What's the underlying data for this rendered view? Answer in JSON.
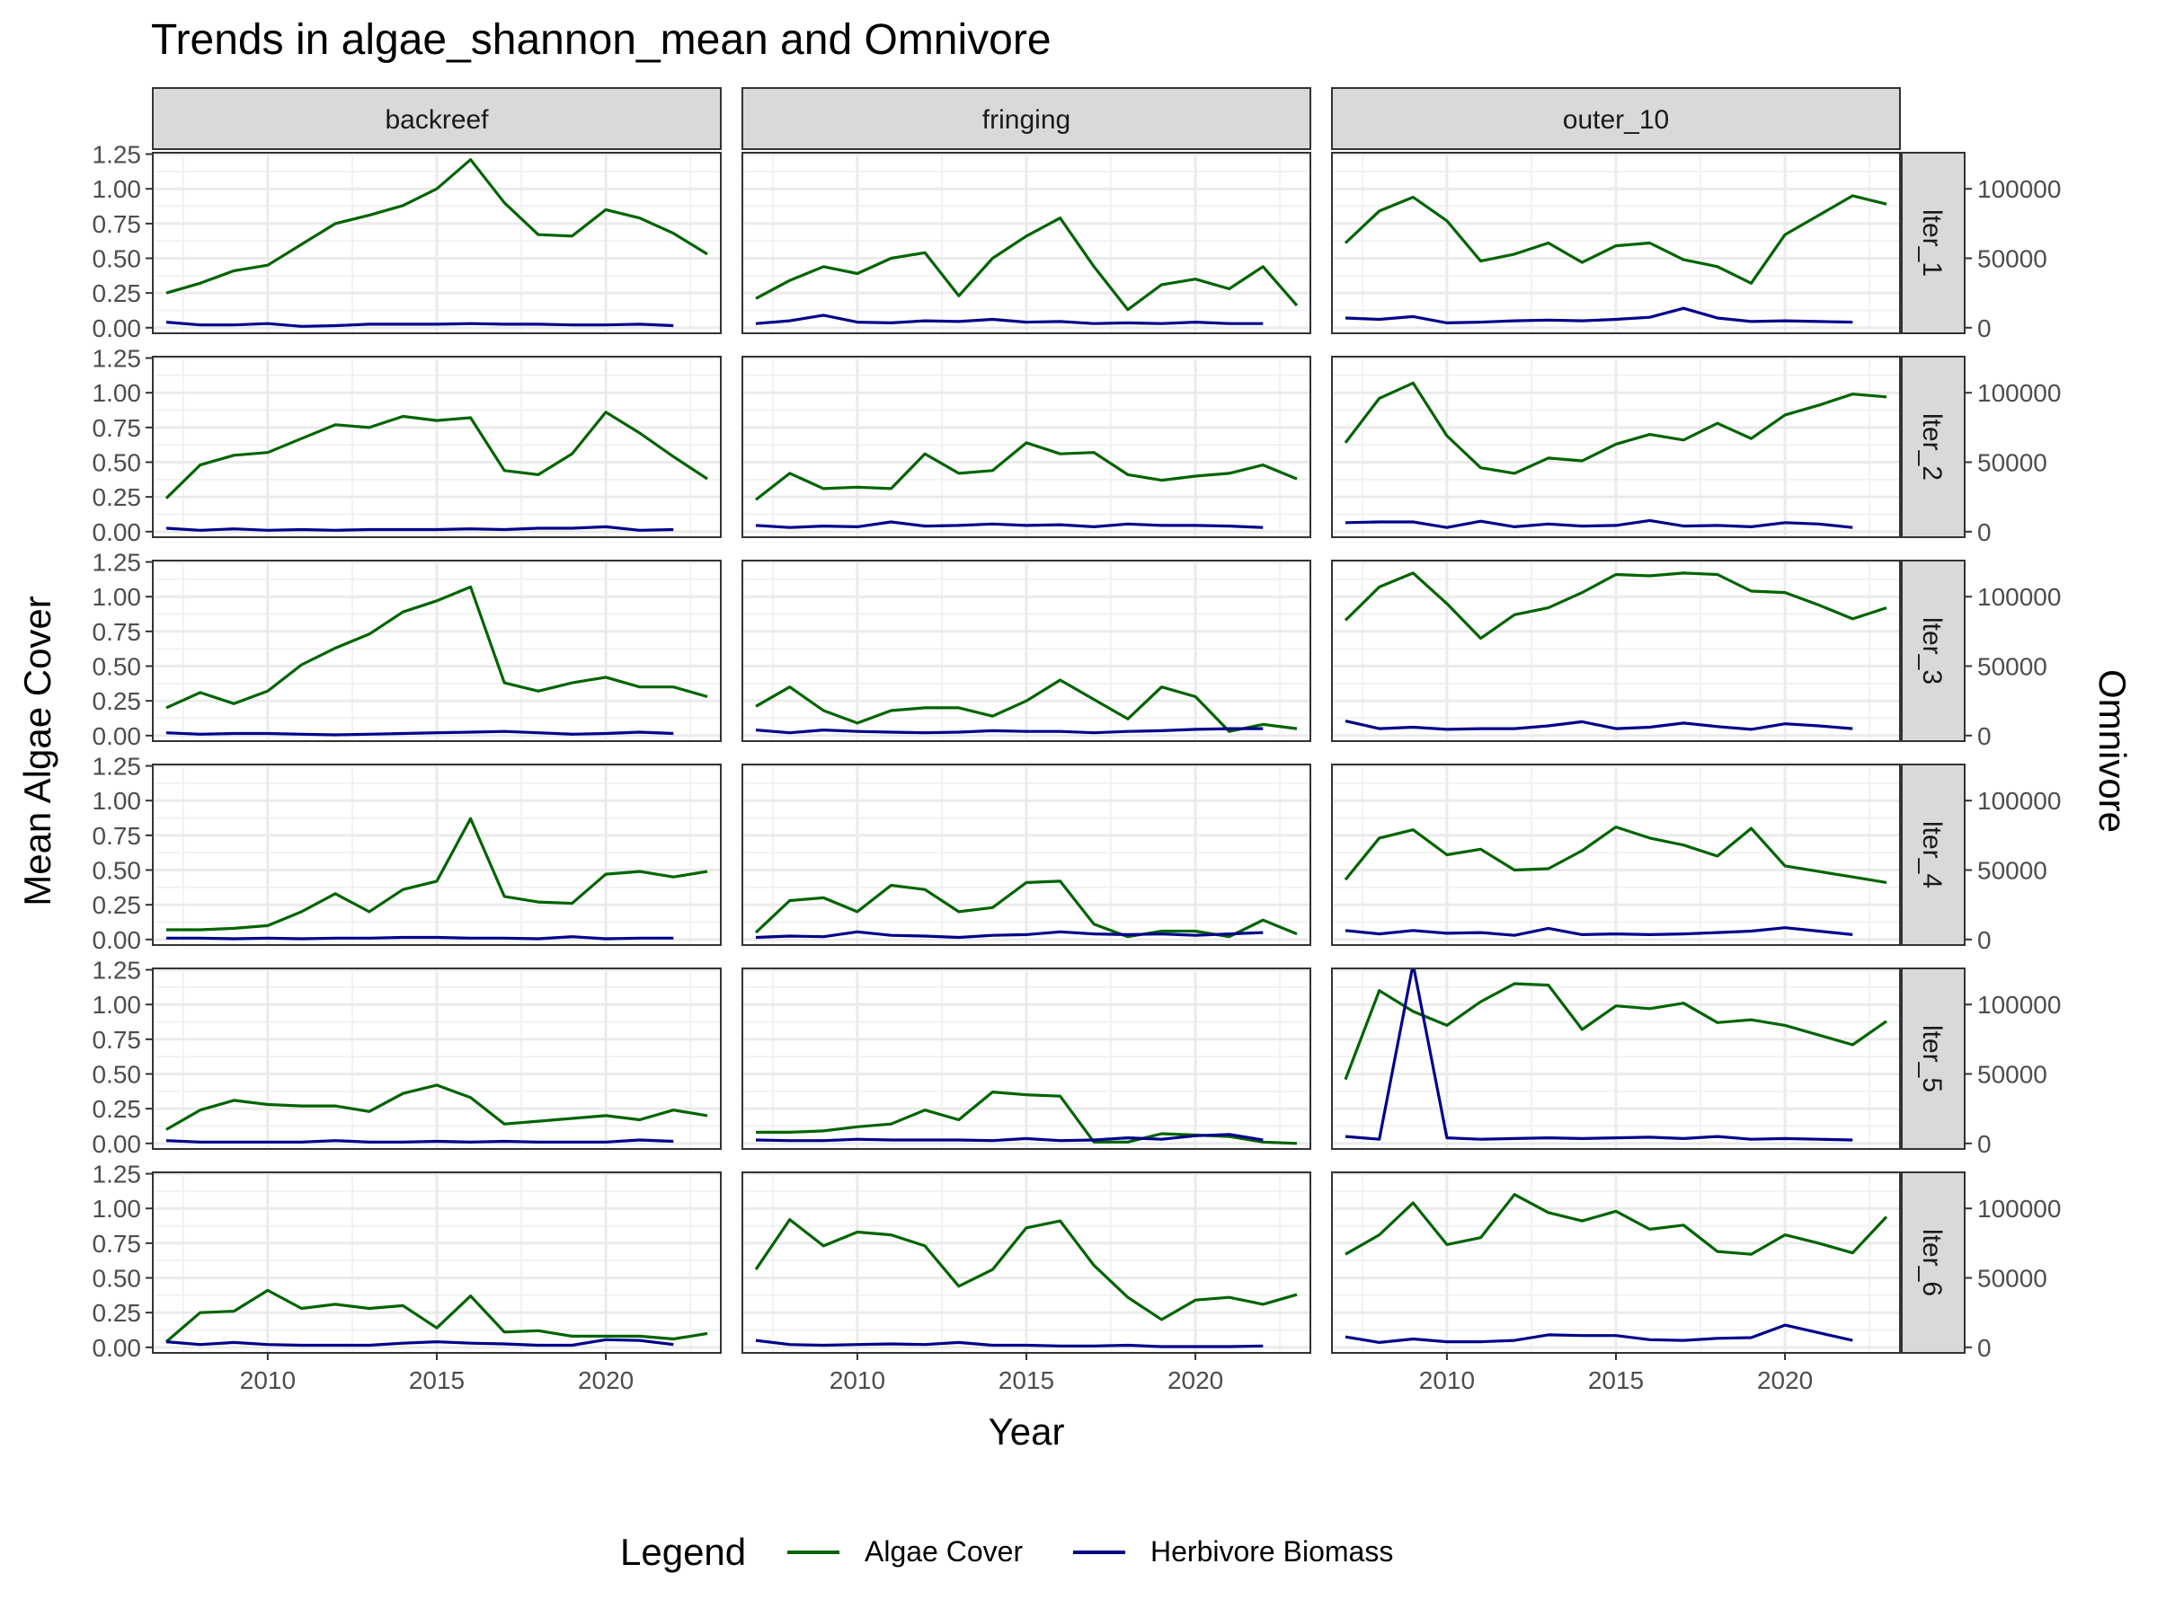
{
  "chart_data": {
    "type": "line",
    "title": "Trends in algae_shannon_mean and Omnivore",
    "xlabel": "Year",
    "ylabel": "Mean Algae Cover",
    "y2label": "Omnivore",
    "legend": {
      "title": "Legend",
      "position": "bottom",
      "entries": [
        {
          "name": "Algae Cover",
          "color": "#006400"
        },
        {
          "name": "Herbivore Biomass",
          "color": "#00008B"
        }
      ]
    },
    "grid": true,
    "xlim": [
      2006.6,
      2023.4
    ],
    "xticks": [
      2010,
      2015,
      2020
    ],
    "ylim": [
      -0.04,
      1.26
    ],
    "yticks": [
      0.0,
      0.25,
      0.5,
      0.75,
      1.0,
      1.25
    ],
    "ytick_labels": [
      "0.00",
      "0.25",
      "0.50",
      "0.75",
      "1.00",
      "1.25"
    ],
    "y2ticks": [
      0,
      50000,
      100000
    ],
    "y2tick_labels": [
      "0",
      "50000",
      "100000"
    ],
    "y2_per_y1": 100000,
    "columns": [
      "backreef",
      "fringing",
      "outer_10"
    ],
    "rows": [
      "lter_1",
      "lter_2",
      "lter_3",
      "lter_4",
      "lter_5",
      "lter_6"
    ],
    "algae_years": [
      2007,
      2008,
      2009,
      2010,
      2011,
      2012,
      2013,
      2014,
      2015,
      2016,
      2017,
      2018,
      2019,
      2020,
      2021,
      2022,
      2023
    ],
    "herbivore_years": [
      2007,
      2008,
      2009,
      2010,
      2011,
      2012,
      2013,
      2014,
      2015,
      2016,
      2017,
      2018,
      2019,
      2020,
      2021,
      2022
    ],
    "panels": [
      {
        "column": "backreef",
        "row": "lter_1",
        "algae": [
          0.25,
          0.32,
          0.41,
          0.45,
          0.6,
          0.75,
          0.81,
          0.88,
          1.0,
          1.21,
          0.9,
          0.67,
          0.66,
          0.85,
          0.79,
          0.68,
          0.53
        ],
        "herbivore": [
          4000,
          2000,
          2000,
          3000,
          1000,
          1500,
          2500,
          2500,
          2500,
          3000,
          2500,
          2500,
          2000,
          2000,
          2500,
          1500
        ]
      },
      {
        "column": "fringing",
        "row": "lter_1",
        "algae": [
          0.21,
          0.34,
          0.44,
          0.39,
          0.5,
          0.54,
          0.23,
          0.5,
          0.66,
          0.79,
          0.44,
          0.13,
          0.31,
          0.35,
          0.28,
          0.44,
          0.16
        ],
        "herbivore": [
          3000,
          5000,
          9000,
          4000,
          3500,
          5000,
          4500,
          6000,
          4000,
          4500,
          3000,
          3500,
          3000,
          4000,
          3000,
          3000
        ]
      },
      {
        "column": "outer_10",
        "row": "lter_1",
        "algae": [
          0.61,
          0.84,
          0.94,
          0.77,
          0.48,
          0.53,
          0.61,
          0.47,
          0.59,
          0.61,
          0.49,
          0.44,
          0.32,
          0.67,
          0.81,
          0.95,
          0.89
        ],
        "herbivore": [
          7000,
          6000,
          8000,
          3500,
          4000,
          5000,
          5500,
          5000,
          6000,
          7500,
          14000,
          7000,
          4500,
          5000,
          4500,
          4000
        ]
      },
      {
        "column": "backreef",
        "row": "lter_2",
        "algae": [
          0.24,
          0.48,
          0.55,
          0.57,
          0.67,
          0.77,
          0.75,
          0.83,
          0.8,
          0.82,
          0.44,
          0.41,
          0.56,
          0.86,
          0.71,
          0.54,
          0.38
        ],
        "herbivore": [
          2500,
          1000,
          2000,
          1000,
          1500,
          1000,
          1500,
          1500,
          1500,
          2000,
          1500,
          2500,
          2500,
          3500,
          1000,
          1500
        ]
      },
      {
        "column": "fringing",
        "row": "lter_2",
        "algae": [
          0.23,
          0.42,
          0.31,
          0.32,
          0.31,
          0.56,
          0.42,
          0.44,
          0.64,
          0.56,
          0.57,
          0.41,
          0.37,
          0.4,
          0.42,
          0.48,
          0.38
        ],
        "herbivore": [
          4500,
          3000,
          4000,
          3500,
          7000,
          4000,
          4500,
          5500,
          4500,
          5000,
          3500,
          5500,
          4500,
          4500,
          4000,
          3000
        ]
      },
      {
        "column": "outer_10",
        "row": "lter_2",
        "algae": [
          0.64,
          0.96,
          1.07,
          0.69,
          0.46,
          0.42,
          0.53,
          0.51,
          0.63,
          0.7,
          0.66,
          0.78,
          0.67,
          0.84,
          0.91,
          0.99,
          0.97
        ],
        "herbivore": [
          6500,
          7000,
          7000,
          3000,
          7500,
          3500,
          5500,
          4000,
          4500,
          8000,
          4000,
          4500,
          3500,
          6500,
          5500,
          3000
        ]
      },
      {
        "column": "backreef",
        "row": "lter_3",
        "algae": [
          0.2,
          0.31,
          0.23,
          0.32,
          0.51,
          0.63,
          0.73,
          0.89,
          0.97,
          1.07,
          0.38,
          0.32,
          0.38,
          0.42,
          0.35,
          0.35,
          0.28
        ],
        "herbivore": [
          2000,
          1000,
          1500,
          1500,
          1000,
          500,
          1000,
          1500,
          2000,
          2500,
          3000,
          2000,
          1000,
          1500,
          2500,
          1500
        ]
      },
      {
        "column": "fringing",
        "row": "lter_3",
        "algae": [
          0.21,
          0.35,
          0.18,
          0.09,
          0.18,
          0.2,
          0.2,
          0.14,
          0.25,
          0.4,
          0.26,
          0.12,
          0.35,
          0.28,
          0.03,
          0.08,
          0.05
        ],
        "herbivore": [
          4000,
          2000,
          4000,
          3000,
          2500,
          2000,
          2500,
          3500,
          3000,
          3000,
          2000,
          3000,
          3500,
          4500,
          5000,
          5000
        ]
      },
      {
        "column": "outer_10",
        "row": "lter_3",
        "algae": [
          0.83,
          1.07,
          1.17,
          0.95,
          0.7,
          0.87,
          0.92,
          1.03,
          1.16,
          1.15,
          1.17,
          1.16,
          1.04,
          1.03,
          0.94,
          0.84,
          0.92
        ],
        "herbivore": [
          10500,
          5000,
          6000,
          4500,
          5000,
          5000,
          7000,
          10000,
          5000,
          6000,
          9000,
          6500,
          4500,
          8500,
          7000,
          5000
        ]
      },
      {
        "column": "backreef",
        "row": "lter_4",
        "algae": [
          0.07,
          0.07,
          0.08,
          0.1,
          0.2,
          0.33,
          0.2,
          0.36,
          0.42,
          0.87,
          0.31,
          0.27,
          0.26,
          0.47,
          0.49,
          0.45,
          0.49
        ],
        "herbivore": [
          1000,
          1000,
          500,
          1000,
          500,
          1000,
          1000,
          1500,
          1500,
          1000,
          1000,
          500,
          2000,
          500,
          1000,
          1000
        ]
      },
      {
        "column": "fringing",
        "row": "lter_4",
        "algae": [
          0.05,
          0.28,
          0.3,
          0.2,
          0.39,
          0.36,
          0.2,
          0.23,
          0.41,
          0.42,
          0.11,
          0.02,
          0.06,
          0.06,
          0.02,
          0.14,
          0.04
        ],
        "herbivore": [
          1500,
          2500,
          2000,
          5500,
          3000,
          2500,
          1500,
          3000,
          3500,
          5500,
          4000,
          3500,
          4000,
          3000,
          4000,
          5000
        ]
      },
      {
        "column": "outer_10",
        "row": "lter_4",
        "algae": [
          0.43,
          0.73,
          0.79,
          0.61,
          0.65,
          0.5,
          0.51,
          0.64,
          0.81,
          0.73,
          0.68,
          0.6,
          0.8,
          0.53,
          0.49,
          0.45,
          0.41
        ],
        "herbivore": [
          6500,
          4000,
          6500,
          4500,
          5000,
          3000,
          8000,
          3500,
          4000,
          3500,
          4000,
          5000,
          6000,
          8500,
          6000,
          3500
        ]
      },
      {
        "column": "backreef",
        "row": "lter_5",
        "algae": [
          0.1,
          0.24,
          0.31,
          0.28,
          0.27,
          0.27,
          0.23,
          0.36,
          0.42,
          0.33,
          0.14,
          0.16,
          0.18,
          0.2,
          0.17,
          0.24,
          0.2
        ],
        "herbivore": [
          2000,
          1000,
          1000,
          1000,
          1000,
          2000,
          1000,
          1000,
          1500,
          1000,
          1500,
          1000,
          1000,
          1000,
          2500,
          1500
        ]
      },
      {
        "column": "fringing",
        "row": "lter_5",
        "algae": [
          0.08,
          0.08,
          0.09,
          0.12,
          0.14,
          0.24,
          0.17,
          0.37,
          0.35,
          0.34,
          0.01,
          0.01,
          0.07,
          0.06,
          0.05,
          0.01,
          0.0
        ],
        "herbivore": [
          2500,
          2000,
          2000,
          3000,
          2500,
          2500,
          2500,
          2000,
          3500,
          2000,
          2500,
          4000,
          3000,
          5500,
          6500,
          2500
        ]
      },
      {
        "column": "outer_10",
        "row": "lter_5",
        "algae": [
          0.46,
          1.1,
          0.95,
          0.85,
          1.02,
          1.15,
          1.14,
          0.82,
          0.99,
          0.97,
          1.01,
          0.87,
          0.89,
          0.85,
          0.78,
          0.71,
          0.88
        ],
        "herbivore": [
          5000,
          3000,
          129000,
          4000,
          3000,
          3500,
          4000,
          3500,
          4000,
          4500,
          3500,
          5000,
          3000,
          3500,
          3000,
          2500
        ]
      },
      {
        "column": "backreef",
        "row": "lter_6",
        "algae": [
          0.04,
          0.25,
          0.26,
          0.41,
          0.28,
          0.31,
          0.28,
          0.3,
          0.14,
          0.37,
          0.11,
          0.12,
          0.08,
          0.08,
          0.08,
          0.06,
          0.1
        ],
        "herbivore": [
          4000,
          2000,
          3500,
          2000,
          1500,
          1500,
          1500,
          3000,
          4000,
          3000,
          2500,
          1500,
          1500,
          5500,
          5000,
          2000
        ]
      },
      {
        "column": "fringing",
        "row": "lter_6",
        "algae": [
          0.56,
          0.92,
          0.73,
          0.83,
          0.81,
          0.73,
          0.44,
          0.56,
          0.86,
          0.91,
          0.59,
          0.36,
          0.2,
          0.34,
          0.36,
          0.31,
          0.38
        ],
        "herbivore": [
          5000,
          2000,
          1500,
          2000,
          2500,
          2000,
          3500,
          1500,
          1500,
          1000,
          1000,
          1500,
          500,
          500,
          500,
          1000
        ]
      },
      {
        "column": "outer_10",
        "row": "lter_6",
        "algae": [
          0.67,
          0.81,
          1.04,
          0.74,
          0.79,
          1.1,
          0.97,
          0.91,
          0.98,
          0.85,
          0.88,
          0.69,
          0.67,
          0.81,
          0.75,
          0.68,
          0.94
        ],
        "herbivore": [
          7500,
          3500,
          6000,
          4000,
          4000,
          5000,
          9000,
          8500,
          8500,
          5500,
          5000,
          6500,
          7000,
          16000,
          10500,
          5000
        ]
      }
    ]
  }
}
